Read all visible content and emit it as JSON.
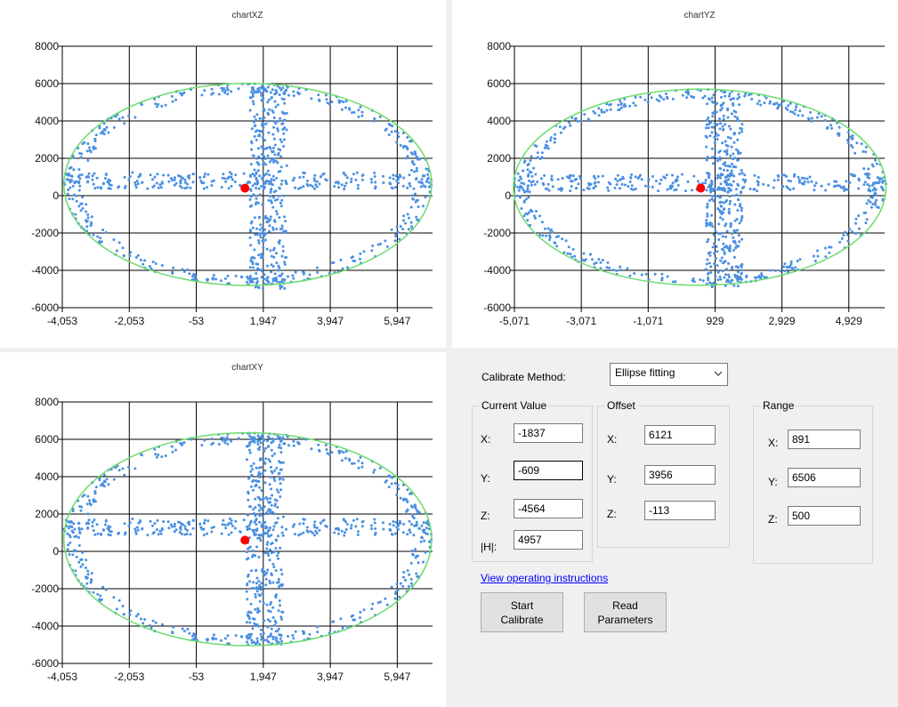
{
  "colors": {
    "points": "#4a90e2",
    "ellipse": "#6bdc6b",
    "marker": "#ff0000",
    "gridline": "#000000"
  },
  "chart_data": [
    {
      "type": "scatter",
      "title": "chartXZ",
      "x_ticks": [
        "-4,053",
        "-2,053",
        "-53",
        "1,947",
        "3,947",
        "5,947"
      ],
      "x_tick_values": [
        -4053,
        -2053,
        -53,
        1947,
        3947,
        5947
      ],
      "xlim": [
        -4053,
        7000
      ],
      "y_ticks": [
        "8000",
        "6000",
        "4000",
        "2000",
        "0",
        "-2000",
        "-4000",
        "-6000"
      ],
      "ylim": [
        -6000,
        8000
      ],
      "grid": true,
      "ellipse": {
        "cx": 1484,
        "cy": 600,
        "rx": 5490,
        "ry": 5410
      },
      "cross": {
        "h_y": 800,
        "h_x_range": [
          -4000,
          7000
        ],
        "v_x": 2100,
        "v_y_range": [
          -5000,
          5800
        ]
      },
      "marker": {
        "x": 1400,
        "y": 400
      }
    },
    {
      "type": "scatter",
      "title": "chartYZ",
      "x_ticks": [
        "-5,071",
        "-3,071",
        "-1,071",
        "929",
        "2,929",
        "4,929"
      ],
      "x_tick_values": [
        -5071,
        -3071,
        -1071,
        929,
        2929,
        4929
      ],
      "xlim": [
        -5071,
        6000
      ],
      "y_ticks": [
        "8000",
        "6000",
        "4000",
        "2000",
        "0",
        "-2000",
        "-4000",
        "-6000"
      ],
      "ylim": [
        -6000,
        8000
      ],
      "grid": true,
      "ellipse": {
        "cx": 470,
        "cy": 450,
        "rx": 5570,
        "ry": 5250
      },
      "cross": {
        "h_y": 700,
        "h_x_range": [
          -5000,
          6000
        ],
        "v_x": 1200,
        "v_y_range": [
          -4900,
          5600
        ]
      },
      "marker": {
        "x": 500,
        "y": 400
      }
    },
    {
      "type": "scatter",
      "title": "chartXY",
      "x_ticks": [
        "-4,053",
        "-2,053",
        "-53",
        "1,947",
        "3,947",
        "5,947"
      ],
      "x_tick_values": [
        -4053,
        -2053,
        -53,
        1947,
        3947,
        5947
      ],
      "xlim": [
        -4053,
        7000
      ],
      "y_ticks": [
        "8000",
        "6000",
        "4000",
        "2000",
        "0",
        "-2000",
        "-4000",
        "-6000"
      ],
      "ylim": [
        -6000,
        8000
      ],
      "grid": true,
      "ellipse": {
        "cx": 1484,
        "cy": 650,
        "rx": 5490,
        "ry": 5700
      },
      "cross": {
        "h_y": 1300,
        "h_x_range": [
          -4000,
          7000
        ],
        "v_x": 2000,
        "v_y_range": [
          -5000,
          6200
        ]
      },
      "marker": {
        "x": 1400,
        "y": 600
      }
    }
  ],
  "controls": {
    "method_label": "Calibrate Method:",
    "method_value": "Ellipse fitting",
    "current": {
      "title": "Current Value",
      "x_label": "X:",
      "x_value": "-1837",
      "y_label": "Y:",
      "y_value": "-609",
      "z_label": "Z:",
      "z_value": "-4564",
      "h_label": "|H|:",
      "h_value": "4957"
    },
    "offset": {
      "title": "Offset",
      "x_label": "X:",
      "x_value": "6121",
      "y_label": "Y:",
      "y_value": "3956",
      "z_label": "Z:",
      "z_value": "-113"
    },
    "range": {
      "title": "Range",
      "x_label": "X:",
      "x_value": "891",
      "y_label": "Y:",
      "y_value": "6506",
      "z_label": "Z:",
      "z_value": "500"
    },
    "instructions_link": "View operating instructions",
    "start_button": "Start\nCalibrate",
    "read_button": "Read\nParameters"
  }
}
